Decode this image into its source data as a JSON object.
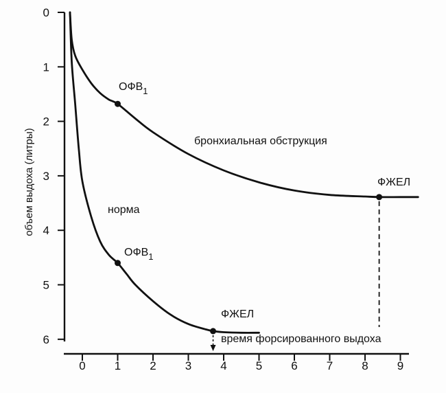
{
  "chart_data": {
    "type": "line",
    "xlabel": "время форсированного выдоха",
    "ylabel": "объем выдоха  (литры)",
    "xlim": [
      0,
      9
    ],
    "ylim": [
      0,
      6
    ],
    "x_ticks": [
      "0",
      "1",
      "2",
      "3",
      "4",
      "5",
      "6",
      "7",
      "8",
      "9"
    ],
    "y_ticks": [
      "0",
      "1",
      "2",
      "3",
      "4",
      "5",
      "6"
    ],
    "series": [
      {
        "name": "норма",
        "x": [
          -0.35,
          -0.3,
          -0.2,
          -0.1,
          0,
          0.25,
          0.5,
          0.75,
          1.0,
          1.25,
          1.5,
          2.0,
          2.5,
          3.0,
          3.5,
          3.7,
          4.0,
          4.5,
          5.0
        ],
        "y": [
          0,
          0.9,
          1.7,
          2.5,
          3.1,
          3.75,
          4.2,
          4.45,
          4.6,
          4.8,
          5.0,
          5.3,
          5.55,
          5.72,
          5.82,
          5.85,
          5.87,
          5.88,
          5.88
        ]
      },
      {
        "name": "бронхиальная обструкция",
        "x": [
          -0.35,
          -0.3,
          -0.2,
          0,
          0.25,
          0.5,
          0.75,
          1.0,
          1.5,
          2.0,
          3.0,
          4.0,
          5.0,
          6.0,
          7.0,
          8.0,
          8.4,
          9.0,
          9.5
        ],
        "y": [
          0,
          0.5,
          0.8,
          1.05,
          1.3,
          1.48,
          1.6,
          1.68,
          1.95,
          2.2,
          2.6,
          2.9,
          3.12,
          3.27,
          3.35,
          3.38,
          3.39,
          3.39,
          3.39
        ]
      }
    ],
    "annotations": {
      "fev1_label": "ОФВ",
      "fev1_sub": "1",
      "fvc_label": "ФЖЕЛ"
    },
    "markers": [
      {
        "kind": "fev1",
        "series": "бронхиальная обструкция",
        "x": 1.0,
        "y": 1.68
      },
      {
        "kind": "fvc",
        "series": "бронхиальная обструкция",
        "x": 8.4,
        "y": 3.39
      },
      {
        "kind": "fev1",
        "series": "норма",
        "x": 1.0,
        "y": 4.6
      },
      {
        "kind": "fvc",
        "series": "норма",
        "x": 3.7,
        "y": 5.85
      }
    ],
    "grid": false,
    "legend": "none"
  }
}
